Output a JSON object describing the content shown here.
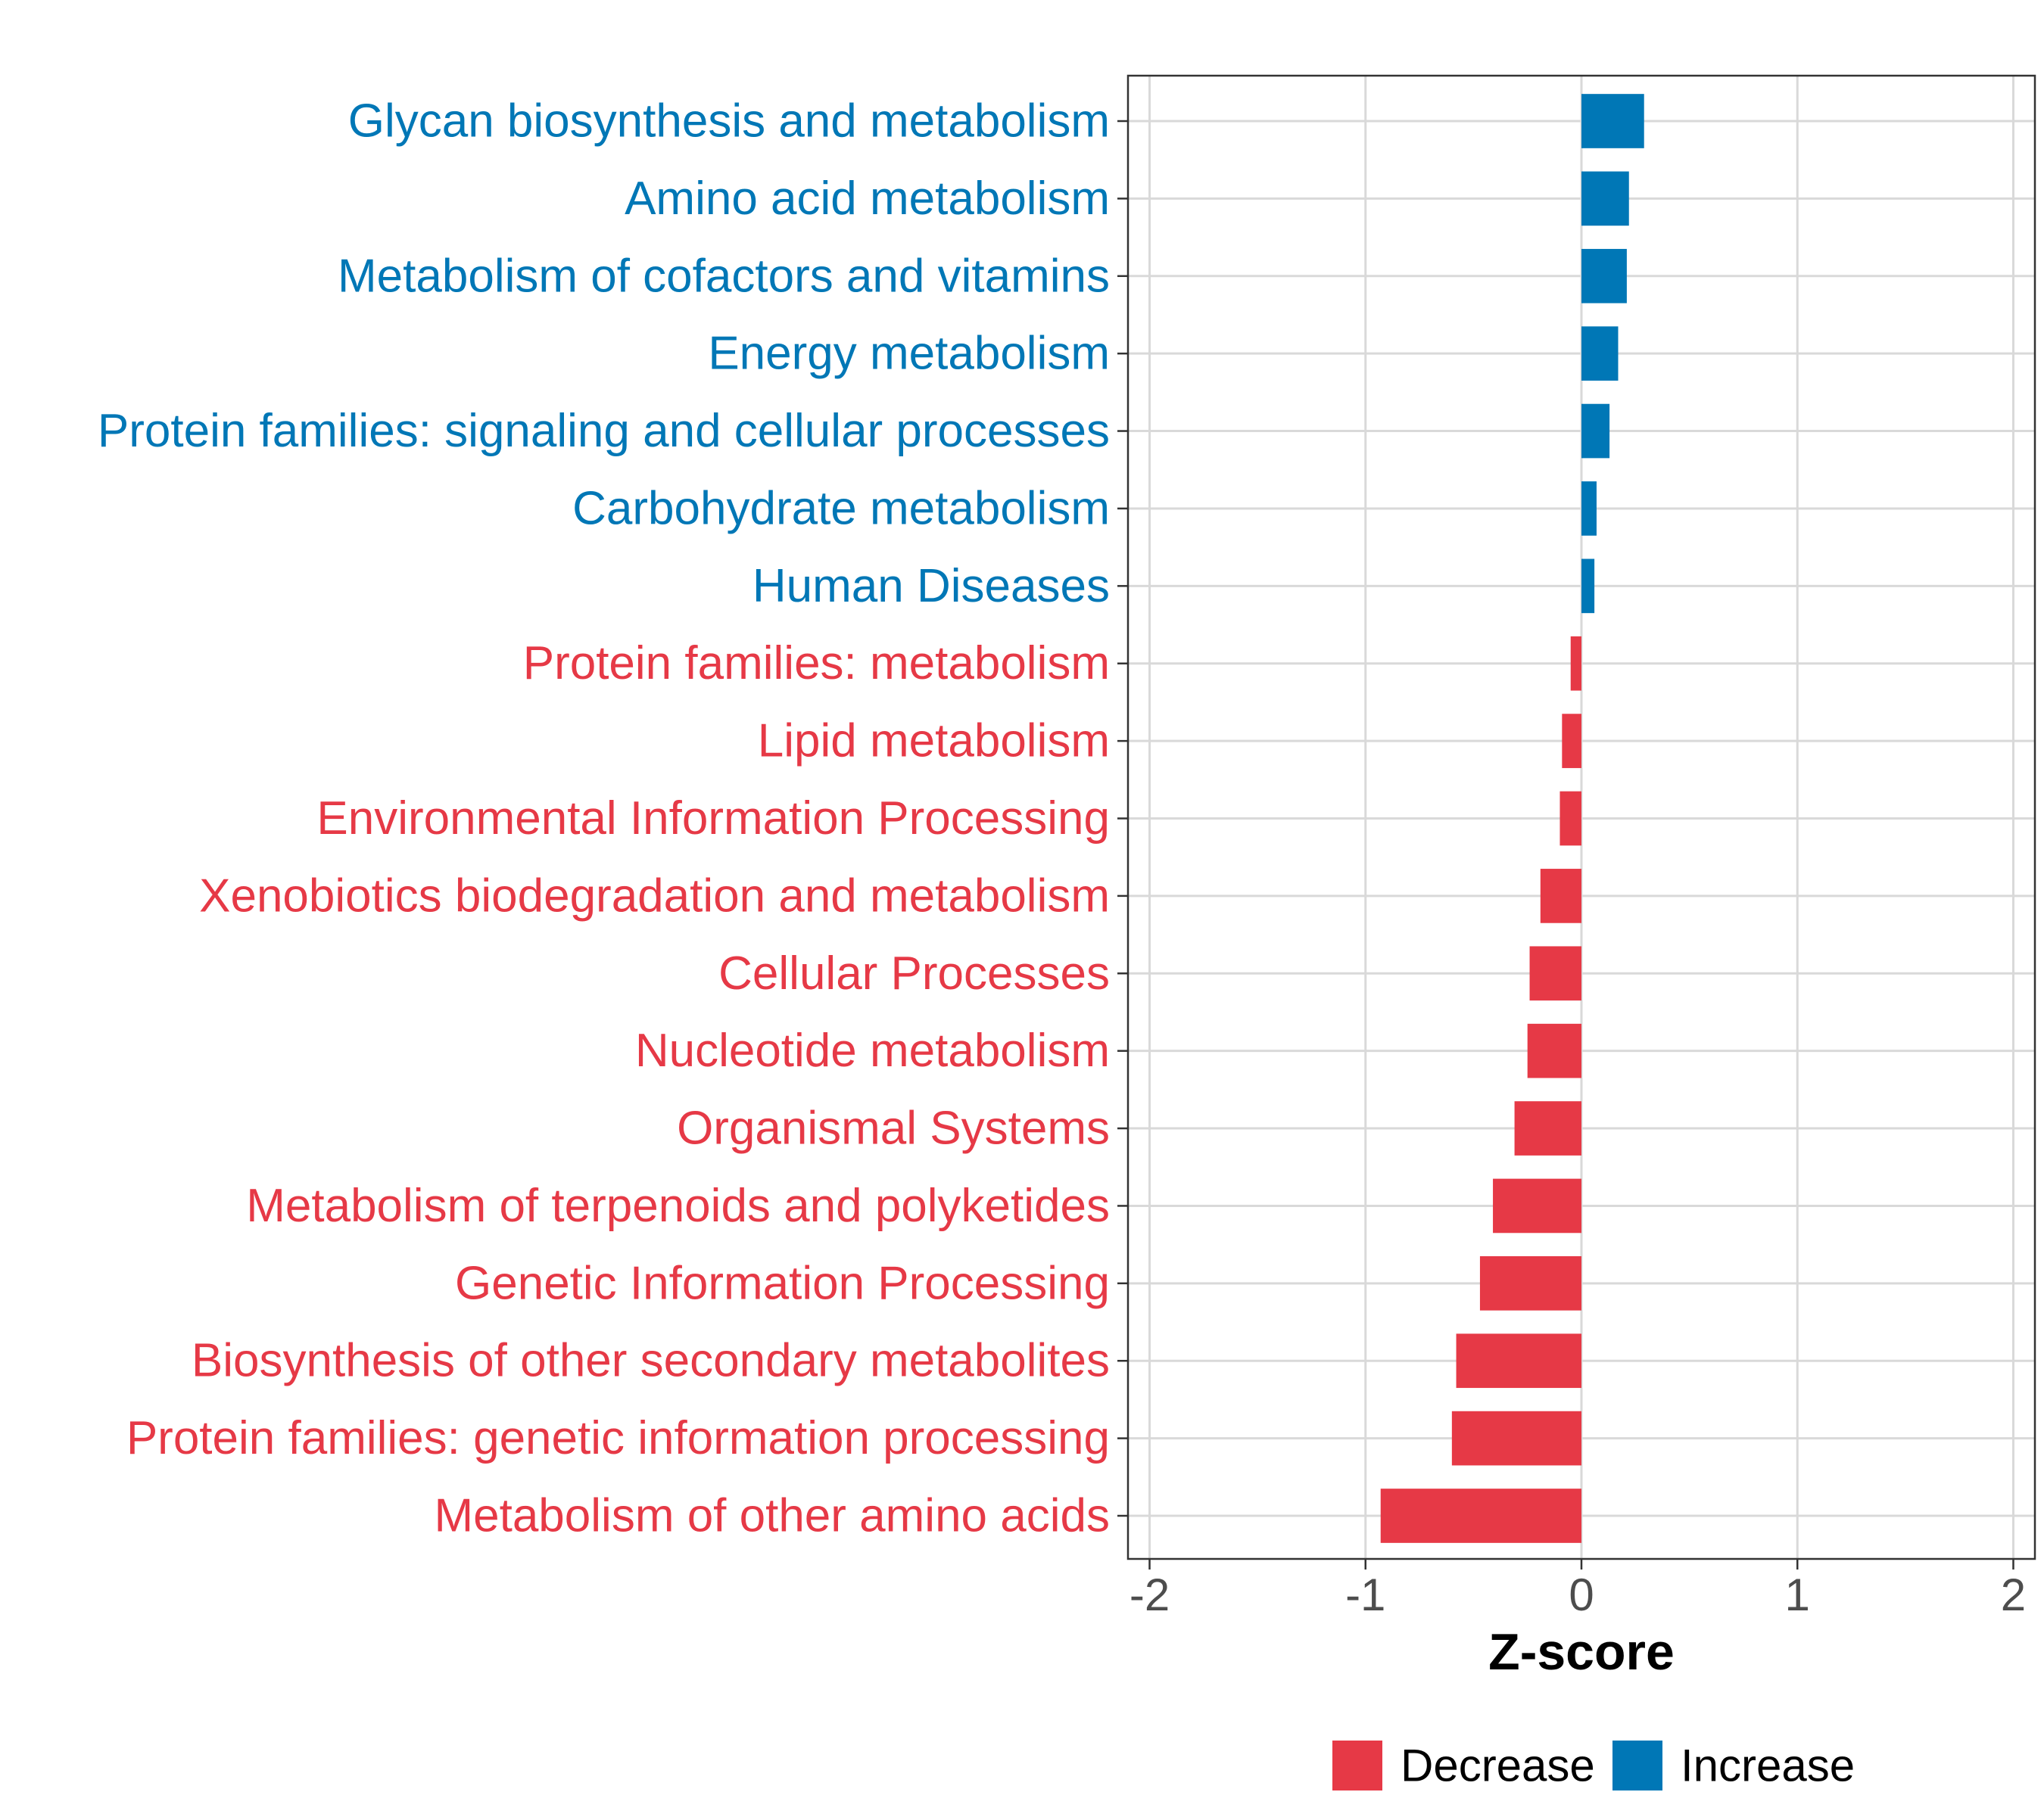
{
  "chart_data": {
    "type": "bar",
    "orientation": "horizontal",
    "title": "",
    "xlabel": "Z-score",
    "ylabel": "",
    "xlim": [
      -2.1,
      2.1
    ],
    "xticks": [
      -2,
      -1,
      0,
      1,
      2
    ],
    "xtick_labels": [
      "-2",
      "-1",
      "0",
      "1",
      "2"
    ],
    "grid": true,
    "legend_position": "bottom",
    "colors": {
      "Decrease": "#E63946",
      "Increase": "#0077B6"
    },
    "legend": [
      {
        "label": "Decrease",
        "color": "#E63946"
      },
      {
        "label": "Increase",
        "color": "#0077B6"
      }
    ],
    "categories": [
      "Glycan biosynthesis and metabolism",
      "Amino acid metabolism",
      "Metabolism of cofactors and vitamins",
      "Energy metabolism",
      "Protein families: signaling and cellular processes",
      "Carbohydrate metabolism",
      "Human Diseases",
      "Protein families: metabolism",
      "Lipid metabolism",
      "Environmental Information Processing",
      "Xenobiotics biodegradation and metabolism",
      "Cellular Processes",
      "Nucleotide metabolism",
      "Organismal Systems",
      "Metabolism of terpenoids and polyketides",
      "Genetic Information Processing",
      "Biosynthesis of other secondary metabolites",
      "Protein families: genetic information processing",
      "Metabolism of other amino acids"
    ],
    "values": [
      0.29,
      0.22,
      0.21,
      0.17,
      0.13,
      0.07,
      0.06,
      -0.05,
      -0.09,
      -0.1,
      -0.19,
      -0.24,
      -0.25,
      -0.31,
      -0.41,
      -0.47,
      -0.58,
      -0.6,
      -0.93
    ],
    "groups": [
      "Increase",
      "Increase",
      "Increase",
      "Increase",
      "Increase",
      "Increase",
      "Increase",
      "Decrease",
      "Decrease",
      "Decrease",
      "Decrease",
      "Decrease",
      "Decrease",
      "Decrease",
      "Decrease",
      "Decrease",
      "Decrease",
      "Decrease",
      "Decrease"
    ]
  }
}
